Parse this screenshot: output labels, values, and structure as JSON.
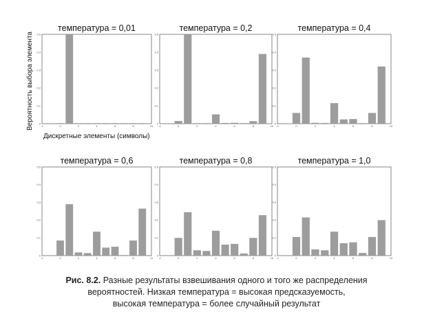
{
  "ylabel": "Вероятность выбора элемента",
  "xlabel": "Дискретные элементы (символы)",
  "caption": {
    "label": "Рис. 8.2.",
    "line1": "Разные результаты взвешивания одного и того же распределения",
    "line2": "вероятностей. Низкая температура = высокая предсказуемость,",
    "line3": "высокая температура = более случайный результат"
  },
  "colors": {
    "bar": "#9d9d9d",
    "frame": "#666666"
  },
  "chart_data": [
    {
      "type": "bar",
      "title": "температура = 0,01",
      "x": [
        0,
        1,
        2,
        3,
        4,
        5,
        6,
        7,
        8,
        9
      ],
      "values": [
        0,
        0.5,
        0,
        0,
        0,
        0,
        0,
        0,
        0,
        0.001
      ],
      "xlim": [
        -2,
        10
      ],
      "ylim": [
        0,
        0.5
      ],
      "xticks": [
        "-2",
        "0",
        "2",
        "4",
        "6",
        "8",
        "10"
      ],
      "yticks": [
        "0",
        "0.1",
        "0.2",
        "0.3",
        "0.4",
        "0.5"
      ]
    },
    {
      "type": "bar",
      "title": "температура = 0,2",
      "x": [
        0,
        1,
        2,
        3,
        4,
        5,
        6,
        7,
        8,
        9
      ],
      "values": [
        0.015,
        0.5,
        0,
        0,
        0.052,
        0.004,
        0.005,
        0,
        0.014,
        0.39
      ],
      "xlim": [
        -2,
        10
      ],
      "ylim": [
        0,
        0.5
      ],
      "xticks": [
        "-2",
        "0",
        "2",
        "4",
        "6",
        "8",
        "10"
      ],
      "yticks": [
        "0",
        "0.1",
        "0.2",
        "0.3",
        "0.4",
        "0.5"
      ]
    },
    {
      "type": "bar",
      "title": "температура = 0,4",
      "x": [
        0,
        1,
        2,
        3,
        4,
        5,
        6,
        7,
        8,
        9
      ],
      "values": [
        0.06,
        0.37,
        0.005,
        0.004,
        0.115,
        0.024,
        0.026,
        0,
        0.06,
        0.32
      ],
      "xlim": [
        -2,
        10
      ],
      "ylim": [
        0,
        0.5
      ],
      "xticks": [
        "-2",
        "0",
        "2",
        "4",
        "6",
        "8",
        "10"
      ],
      "yticks": [
        "0",
        "0.1",
        "0.2",
        "0.3",
        "0.4",
        "0.5"
      ]
    },
    {
      "type": "bar",
      "title": "температура = 0,6",
      "x": [
        0,
        1,
        2,
        3,
        4,
        5,
        6,
        7,
        8,
        9
      ],
      "values": [
        0.085,
        0.29,
        0.018,
        0.014,
        0.135,
        0.045,
        0.05,
        0.003,
        0.085,
        0.265
      ],
      "xlim": [
        -2,
        10
      ],
      "ylim": [
        0,
        0.5
      ],
      "xticks": [
        "-2",
        "0",
        "2",
        "4",
        "6",
        "8",
        "10"
      ],
      "yticks": [
        "0",
        "0.1",
        "0.2",
        "0.3",
        "0.4",
        "0.5"
      ]
    },
    {
      "type": "bar",
      "title": "температура = 0,8",
      "x": [
        0,
        1,
        2,
        3,
        4,
        5,
        6,
        7,
        8,
        9
      ],
      "values": [
        0.1,
        0.245,
        0.03,
        0.026,
        0.14,
        0.062,
        0.066,
        0.012,
        0.1,
        0.228
      ],
      "xlim": [
        -2,
        10
      ],
      "ylim": [
        0,
        0.5
      ],
      "xticks": [
        "-2",
        "0",
        "2",
        "4",
        "6",
        "8",
        "10"
      ],
      "yticks": [
        "0",
        "0.1",
        "0.2",
        "0.3",
        "0.4",
        "0.5"
      ]
    },
    {
      "type": "bar",
      "title": "температура = 1,0",
      "x": [
        0,
        1,
        2,
        3,
        4,
        5,
        6,
        7,
        8,
        9
      ],
      "values": [
        0.105,
        0.215,
        0.035,
        0.03,
        0.135,
        0.07,
        0.075,
        0.015,
        0.105,
        0.2
      ],
      "xlim": [
        -2,
        10
      ],
      "ylim": [
        0,
        0.5
      ],
      "xticks": [
        "-2",
        "0",
        "2",
        "4",
        "6",
        "8",
        "10"
      ],
      "yticks": [
        "0",
        "0.1",
        "0.2",
        "0.3",
        "0.4",
        "0.5"
      ]
    }
  ]
}
